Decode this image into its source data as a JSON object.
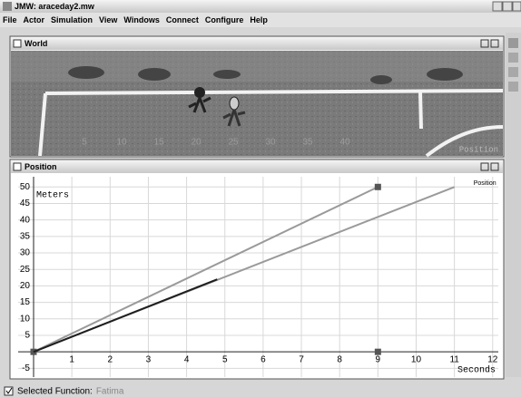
{
  "window": {
    "title": "JMW: araceday2.mw"
  },
  "menu": [
    "File",
    "Actor",
    "Simulation",
    "View",
    "Windows",
    "Connect",
    "Configure",
    "Help"
  ],
  "world": {
    "title": "World",
    "yard_labels": [
      "5",
      "10",
      "15",
      "20",
      "25",
      "30",
      "35",
      "40"
    ],
    "caption": "Position"
  },
  "chart_data": {
    "type": "line",
    "title": "Position",
    "y_label": "Meters",
    "x_label": "Seconds",
    "xlim": [
      0,
      12.1
    ],
    "ylim": [
      -6,
      52
    ],
    "xticks": [
      1,
      2,
      3,
      4,
      5,
      6,
      7,
      8,
      9,
      10,
      11,
      12
    ],
    "yticks": [
      -5,
      5,
      10,
      15,
      20,
      25,
      30,
      35,
      40,
      45,
      50
    ],
    "grid": true,
    "series": [
      {
        "name": "Position",
        "color": "#9a9a9a",
        "x": [
          0,
          11
        ],
        "values": [
          0,
          50
        ],
        "markers": false,
        "line": true
      },
      {
        "color": "#9a9a9a",
        "x": [
          0,
          9
        ],
        "values": [
          0,
          50
        ],
        "markers": true,
        "line": true
      },
      {
        "color": "#1e1e1e",
        "x": [
          0,
          4.8
        ],
        "values": [
          0,
          22
        ],
        "markers": false,
        "line": true
      },
      {
        "color": "#555555",
        "x": [
          9
        ],
        "values": [
          0
        ],
        "markers": true,
        "line": false
      }
    ]
  },
  "status": {
    "label": "Selected Function:",
    "value": "Fatima"
  }
}
